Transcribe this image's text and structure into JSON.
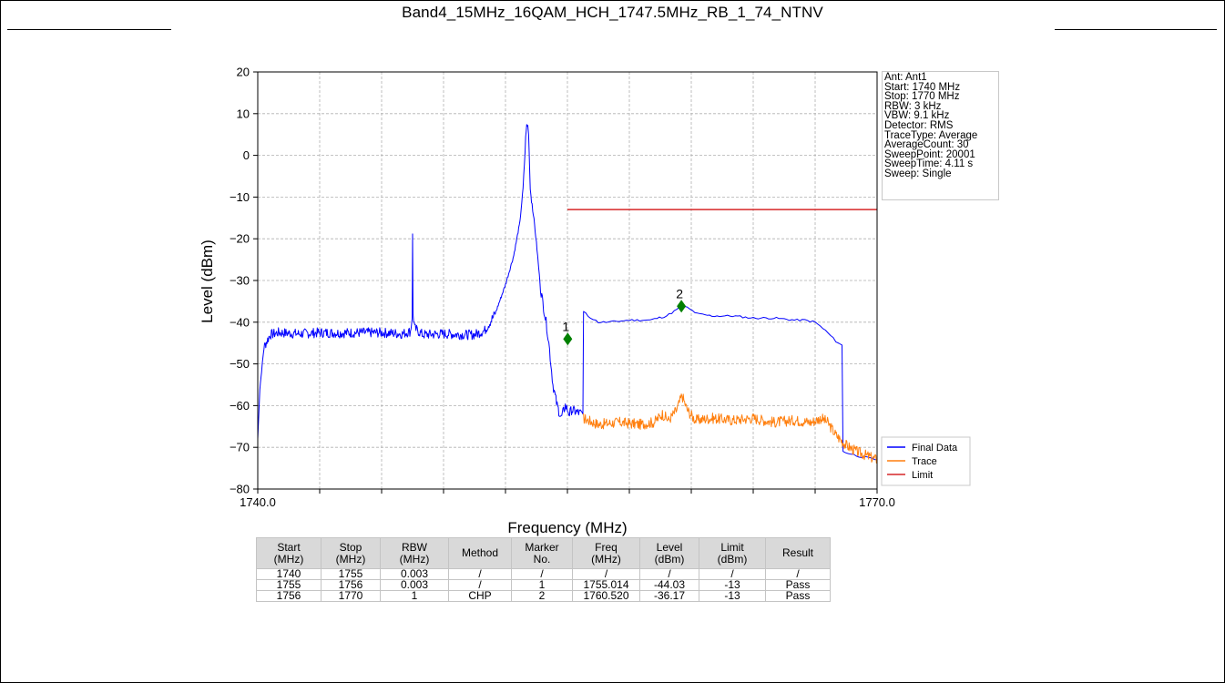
{
  "page": {
    "title": "Band4_15MHz_16QAM_HCH_1747.5MHz_RB_1_74_NTNV"
  },
  "info_box": [
    "Ant: Ant1",
    "Start: 1740 MHz",
    "Stop: 1770 MHz",
    "RBW: 3 kHz",
    "VBW: 9.1 kHz",
    "Detector: RMS",
    "TraceType: Average",
    "AverageCount: 30",
    "SweepPoint: 20001",
    "SweepTime: 4.11 s",
    "Sweep: Single"
  ],
  "chart_data": {
    "type": "line",
    "xlabel": "Frequency (MHz)",
    "ylabel": "Level (dBm)",
    "xlim": [
      1740,
      1770
    ],
    "ylim": [
      -80,
      20
    ],
    "x_tick_labels": [
      {
        "x": 1740,
        "label": "1740.0"
      },
      {
        "x": 1770,
        "label": "1770.0"
      }
    ],
    "x_minor_ticks": [
      1743,
      1746,
      1749,
      1752,
      1755,
      1758,
      1761,
      1764,
      1767
    ],
    "y_ticks": [
      20,
      10,
      0,
      -10,
      -20,
      -30,
      -40,
      -50,
      -60,
      -70,
      -80
    ],
    "y_tick_labels": [
      "20",
      "10",
      "0",
      "−10",
      "−20",
      "−30",
      "−40",
      "−50",
      "−60",
      "−70",
      "−80"
    ],
    "grid": true,
    "legend_position": "lower-right",
    "colors": {
      "final": "#0000ff",
      "trace": "#ff7f0e",
      "limit": "#d62728",
      "marker": "#008000"
    },
    "series": [
      {
        "name": "Final Data",
        "points": [
          [
            1740.0,
            -68
          ],
          [
            1740.1,
            -56
          ],
          [
            1740.3,
            -46
          ],
          [
            1740.6,
            -43
          ],
          [
            1741.0,
            -42.5
          ],
          [
            1742.0,
            -42.8
          ],
          [
            1743.0,
            -42.5
          ],
          [
            1744.0,
            -42.6
          ],
          [
            1745.0,
            -42.5
          ],
          [
            1746.0,
            -42.5
          ],
          [
            1747.0,
            -42.8
          ],
          [
            1747.4,
            -42.2
          ],
          [
            1747.48,
            -39
          ],
          [
            1747.5,
            -19
          ],
          [
            1747.52,
            -38
          ],
          [
            1747.6,
            -41.5
          ],
          [
            1748.0,
            -43
          ],
          [
            1749.0,
            -42.8
          ],
          [
            1750.0,
            -43
          ],
          [
            1750.5,
            -43
          ],
          [
            1751.0,
            -42
          ],
          [
            1751.5,
            -38
          ],
          [
            1752.0,
            -31
          ],
          [
            1752.4,
            -24
          ],
          [
            1752.7,
            -16
          ],
          [
            1752.85,
            -8
          ],
          [
            1752.95,
            1
          ],
          [
            1753.0,
            6.5
          ],
          [
            1753.08,
            7
          ],
          [
            1753.12,
            5
          ],
          [
            1753.2,
            -8
          ],
          [
            1753.35,
            -14
          ],
          [
            1753.5,
            -21
          ],
          [
            1753.7,
            -32
          ],
          [
            1753.9,
            -38
          ],
          [
            1754.0,
            -41
          ],
          [
            1754.1,
            -45
          ],
          [
            1754.2,
            -50
          ],
          [
            1754.3,
            -55
          ],
          [
            1754.5,
            -60
          ],
          [
            1754.7,
            -63
          ],
          [
            1754.9,
            -60
          ],
          [
            1755.0,
            -61
          ],
          [
            1755.1,
            -62
          ],
          [
            1755.2,
            -61
          ],
          [
            1755.4,
            -61.5
          ],
          [
            1755.75,
            -62
          ],
          [
            1755.78,
            -37.5
          ],
          [
            1756.0,
            -38.5
          ],
          [
            1756.5,
            -40
          ],
          [
            1757.0,
            -40
          ],
          [
            1758.0,
            -39.5
          ],
          [
            1759.0,
            -39.5
          ],
          [
            1759.8,
            -38.5
          ],
          [
            1760.3,
            -37
          ],
          [
            1760.52,
            -36.2
          ],
          [
            1760.8,
            -36.5
          ],
          [
            1761.3,
            -38
          ],
          [
            1762.0,
            -38.5
          ],
          [
            1763.0,
            -38.5
          ],
          [
            1764.0,
            -39
          ],
          [
            1765.0,
            -39
          ],
          [
            1766.0,
            -39.5
          ],
          [
            1766.5,
            -39.5
          ],
          [
            1767.0,
            -40
          ],
          [
            1767.5,
            -42
          ],
          [
            1768.0,
            -44.5
          ],
          [
            1768.3,
            -45.5
          ],
          [
            1768.35,
            -71
          ],
          [
            1769.0,
            -72
          ],
          [
            1770.0,
            -73
          ]
        ]
      },
      {
        "name": "Trace",
        "points": [
          [
            1755.75,
            -63
          ],
          [
            1756.5,
            -64.5
          ],
          [
            1757.5,
            -64
          ],
          [
            1758.5,
            -64.5
          ],
          [
            1759.2,
            -64
          ],
          [
            1759.6,
            -62
          ],
          [
            1759.9,
            -63.5
          ],
          [
            1760.3,
            -61
          ],
          [
            1760.55,
            -57.5
          ],
          [
            1760.8,
            -61
          ],
          [
            1761.2,
            -63.5
          ],
          [
            1762.0,
            -63
          ],
          [
            1763.0,
            -63.5
          ],
          [
            1764.0,
            -63
          ],
          [
            1765.0,
            -64
          ],
          [
            1766.0,
            -63.5
          ],
          [
            1766.8,
            -64
          ],
          [
            1767.3,
            -63
          ],
          [
            1767.6,
            -64
          ],
          [
            1768.0,
            -67
          ],
          [
            1768.5,
            -69.5
          ],
          [
            1769.0,
            -71
          ],
          [
            1769.5,
            -72
          ],
          [
            1770.0,
            -73
          ]
        ]
      },
      {
        "name": "Limit",
        "points": [
          [
            1755.0,
            -13
          ],
          [
            1770.0,
            -13
          ]
        ]
      }
    ],
    "markers": [
      {
        "label": "1",
        "x": 1755.014,
        "y": -44.03
      },
      {
        "label": "2",
        "x": 1760.52,
        "y": -36.17
      }
    ]
  },
  "table": {
    "headers": [
      "Start\n(MHz)",
      "Stop\n(MHz)",
      "RBW\n(MHz)",
      "Method",
      "Marker\nNo.",
      "Freq\n(MHz)",
      "Level\n(dBm)",
      "Limit\n(dBm)",
      "Result"
    ],
    "rows": [
      [
        "1740",
        "1755",
        "0.003",
        "/",
        "/",
        "/",
        "/",
        "/",
        "/"
      ],
      [
        "1755",
        "1756",
        "0.003",
        "/",
        "1",
        "1755.014",
        "-44.03",
        "-13",
        "Pass"
      ],
      [
        "1756",
        "1770",
        "1",
        "CHP",
        "2",
        "1760.520",
        "-36.17",
        "-13",
        "Pass"
      ]
    ]
  }
}
